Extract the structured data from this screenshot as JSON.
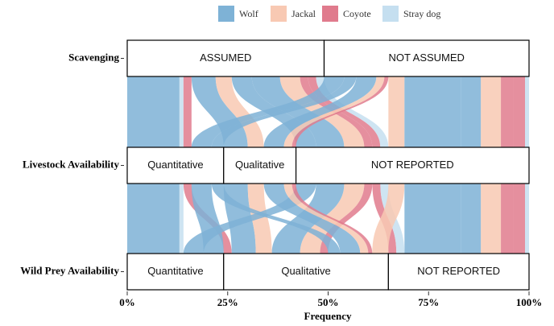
{
  "chart_data": {
    "type": "alluvial",
    "xlabel": "Frequency",
    "xlim": [
      0,
      100
    ],
    "xticks": [
      {
        "value": 0,
        "label": "0%"
      },
      {
        "value": 25,
        "label": "25%"
      },
      {
        "value": 50,
        "label": "50%"
      },
      {
        "value": 75,
        "label": "75%"
      },
      {
        "value": 100,
        "label": "100%"
      }
    ],
    "axes": [
      {
        "label": "Scavenging",
        "strata": [
          "ASSUMED",
          "NOT ASSUMED"
        ]
      },
      {
        "label": "Livestock Availability",
        "strata": [
          "Quantitative",
          "Qualitative",
          "NOT REPORTED"
        ]
      },
      {
        "label": "Wild Prey Availability",
        "strata": [
          "Quantitative",
          "Qualitative",
          "NOT REPORTED"
        ]
      }
    ],
    "series": [
      {
        "name": "Wolf",
        "color": "#7eb2d6"
      },
      {
        "name": "Jackal",
        "color": "#f8c9b3"
      },
      {
        "name": "Coyote",
        "color": "#e07b8d"
      },
      {
        "name": "Stray dog",
        "color": "#c5dff0"
      }
    ],
    "flows": [
      {
        "species": "Wolf",
        "strata": [
          "ASSUMED",
          "Quantitative",
          "Quantitative"
        ],
        "value": 13
      },
      {
        "species": "Stray dog",
        "strata": [
          "ASSUMED",
          "Quantitative",
          "Quantitative"
        ],
        "value": 1
      },
      {
        "species": "Wolf",
        "strata": [
          "ASSUMED",
          "Qualitative",
          "Qualitative"
        ],
        "value": 6
      },
      {
        "species": "Coyote",
        "strata": [
          "ASSUMED",
          "Quantitative",
          "Qualitative"
        ],
        "value": 2
      },
      {
        "species": "Jackal",
        "strata": [
          "ASSUMED",
          "NOT REPORTED",
          "Qualitative"
        ],
        "value": 5
      },
      {
        "species": "Wolf",
        "strata": [
          "ASSUMED",
          "NOT REPORTED",
          "Qualitative"
        ],
        "value": 7
      },
      {
        "species": "Coyote",
        "strata": [
          "ASSUMED",
          "NOT REPORTED",
          "NOT REPORTED"
        ],
        "value": 2
      },
      {
        "species": "Jackal",
        "strata": [
          "ASSUMED",
          "Qualitative",
          "Qualitative"
        ],
        "value": 4
      },
      {
        "species": "Wolf",
        "strata": [
          "ASSUMED",
          "NOT REPORTED",
          "Quantitative"
        ],
        "value": 5
      },
      {
        "species": "Coyote",
        "strata": [
          "ASSUMED",
          "NOT REPORTED",
          "Qualitative"
        ],
        "value": 2
      },
      {
        "species": "Stray dog",
        "strata": [
          "ASSUMED",
          "NOT REPORTED",
          "NOT REPORTED"
        ],
        "value": 2
      },
      {
        "species": "Wolf",
        "strata": [
          "NOT ASSUMED",
          "Quantitative",
          "Quantitative"
        ],
        "value": 5
      },
      {
        "species": "Wolf",
        "strata": [
          "NOT ASSUMED",
          "Qualitative",
          "Qualitative"
        ],
        "value": 5
      },
      {
        "species": "Jackal",
        "strata": [
          "NOT ASSUMED",
          "NOT REPORTED",
          "Qualitative"
        ],
        "value": 4
      },
      {
        "species": "Wolf",
        "strata": [
          "NOT ASSUMED",
          "NOT REPORTED",
          "NOT REPORTED"
        ],
        "value": 14
      },
      {
        "species": "Jackal",
        "strata": [
          "NOT ASSUMED",
          "NOT REPORTED",
          "NOT REPORTED"
        ],
        "value": 5
      },
      {
        "species": "Coyote",
        "strata": [
          "NOT ASSUMED",
          "NOT REPORTED",
          "NOT REPORTED"
        ],
        "value": 3
      },
      {
        "species": "Stray dog",
        "strata": [
          "NOT ASSUMED",
          "NOT REPORTED",
          "NOT REPORTED"
        ],
        "value": 1
      },
      {
        "species": "Jackal",
        "strata": [
          "NOT ASSUMED",
          "Qualitative",
          "Qualitative"
        ],
        "value": 2
      },
      {
        "species": "Wolf",
        "strata": [
          "NOT ASSUMED",
          "Quantitative",
          "Qualitative"
        ],
        "value": 3
      },
      {
        "species": "Coyote",
        "strata": [
          "NOT ASSUMED",
          "Qualitative",
          "Qualitative"
        ],
        "value": 1
      },
      {
        "species": "Wolf",
        "strata": [
          "NOT ASSUMED",
          "NOT REPORTED",
          "NOT REPORTED"
        ],
        "value": 5
      },
      {
        "species": "Coyote",
        "strata": [
          "NOT ASSUMED",
          "NOT REPORTED",
          "NOT REPORTED"
        ],
        "value": 3
      }
    ]
  }
}
